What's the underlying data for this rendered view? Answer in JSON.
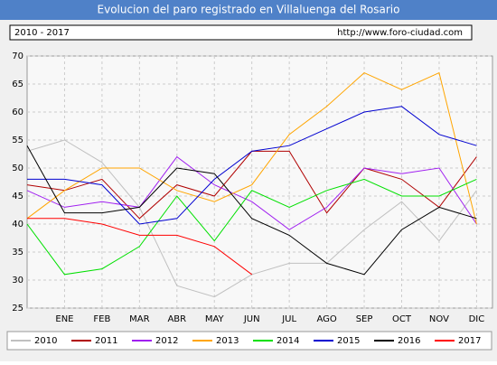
{
  "chart_data": {
    "type": "line",
    "title": "Evolucion del paro registrado en Villaluenga del Rosario",
    "subtitle": "2010 - 2017",
    "source": "http://www.foro-ciudad.com",
    "categories": [
      null,
      "ENE",
      "FEB",
      "MAR",
      "ABR",
      "MAY",
      "JUN",
      "JUL",
      "AGO",
      "SEP",
      "OCT",
      "NOV",
      "DIC"
    ],
    "ylim": [
      25,
      70
    ],
    "yticks": [
      25,
      30,
      35,
      40,
      45,
      50,
      55,
      60,
      65,
      70
    ],
    "grid": true,
    "series": [
      {
        "name": "2010",
        "color": "#c0c0c0",
        "values": [
          53,
          55,
          51,
          43,
          29,
          27,
          31,
          33,
          33,
          39,
          44,
          37,
          46
        ]
      },
      {
        "name": "2011",
        "color": "#b00000",
        "values": [
          47,
          46,
          48,
          41,
          47,
          45,
          53,
          53,
          42,
          50,
          48,
          43,
          52
        ]
      },
      {
        "name": "2012",
        "color": "#a020f0",
        "values": [
          46,
          43,
          44,
          43,
          52,
          47,
          44,
          39,
          43,
          50,
          49,
          50,
          40
        ]
      },
      {
        "name": "2013",
        "color": "#ffa500",
        "values": [
          41,
          46,
          50,
          50,
          46,
          44,
          47,
          56,
          61,
          67,
          64,
          67,
          40
        ]
      },
      {
        "name": "2014",
        "color": "#00e000",
        "values": [
          40,
          31,
          32,
          36,
          45,
          37,
          46,
          43,
          46,
          48,
          45,
          45,
          48
        ]
      },
      {
        "name": "2015",
        "color": "#0000d0",
        "values": [
          48,
          48,
          47,
          40,
          41,
          48,
          53,
          54,
          57,
          60,
          61,
          56,
          54
        ]
      },
      {
        "name": "2016",
        "color": "#000000",
        "values": [
          54,
          42,
          42,
          43,
          50,
          49,
          41,
          38,
          33,
          31,
          39,
          43,
          41
        ]
      },
      {
        "name": "2017",
        "color": "#ff0000",
        "values": [
          41,
          41,
          40,
          38,
          38,
          36,
          31,
          null,
          null,
          null,
          null,
          null,
          null
        ]
      }
    ]
  }
}
